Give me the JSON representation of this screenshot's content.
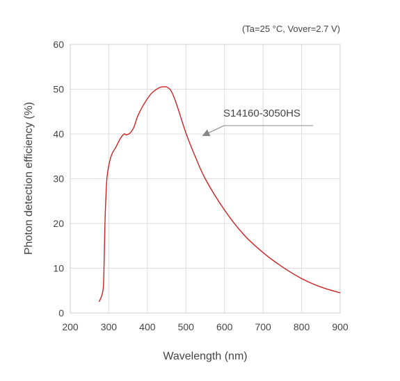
{
  "chart_data": {
    "type": "line",
    "conditions": "(Ta=25 °C, Vover=2.7 V)",
    "xlabel": "Wavelength (nm)",
    "ylabel": "Photon detection efficiency (%)",
    "xlim": [
      200,
      900
    ],
    "ylim": [
      0,
      60
    ],
    "xticks": [
      "200",
      "300",
      "400",
      "500",
      "600",
      "700",
      "800",
      "900"
    ],
    "yticks": [
      "0",
      "10",
      "20",
      "30",
      "40",
      "50",
      "60"
    ],
    "grid": true,
    "series": [
      {
        "name": "S14160-3050HS",
        "color": "#cc2222",
        "x": [
          275,
          282,
          286,
          288,
          290,
          292,
          295,
          300,
          308,
          318,
          330,
          340,
          345,
          355,
          365,
          375,
          390,
          410,
          430,
          440,
          450,
          460,
          470,
          480,
          490,
          500,
          520,
          550,
          600,
          650,
          700,
          750,
          800,
          850,
          900
        ],
        "y": [
          2.5,
          4,
          6,
          12,
          20,
          25,
          30,
          33,
          35.5,
          37,
          39,
          40,
          39.8,
          40.2,
          41.5,
          44,
          46.5,
          49,
          50.3,
          50.5,
          50.5,
          49.8,
          48,
          45.5,
          42.8,
          40.2,
          35.8,
          30,
          23,
          17.5,
          13.5,
          10.3,
          7.7,
          5.8,
          4.5
        ]
      }
    ],
    "annotations": [
      {
        "text": "S14160-3050HS",
        "points_to_x": 540,
        "points_to_y": 39
      }
    ]
  }
}
